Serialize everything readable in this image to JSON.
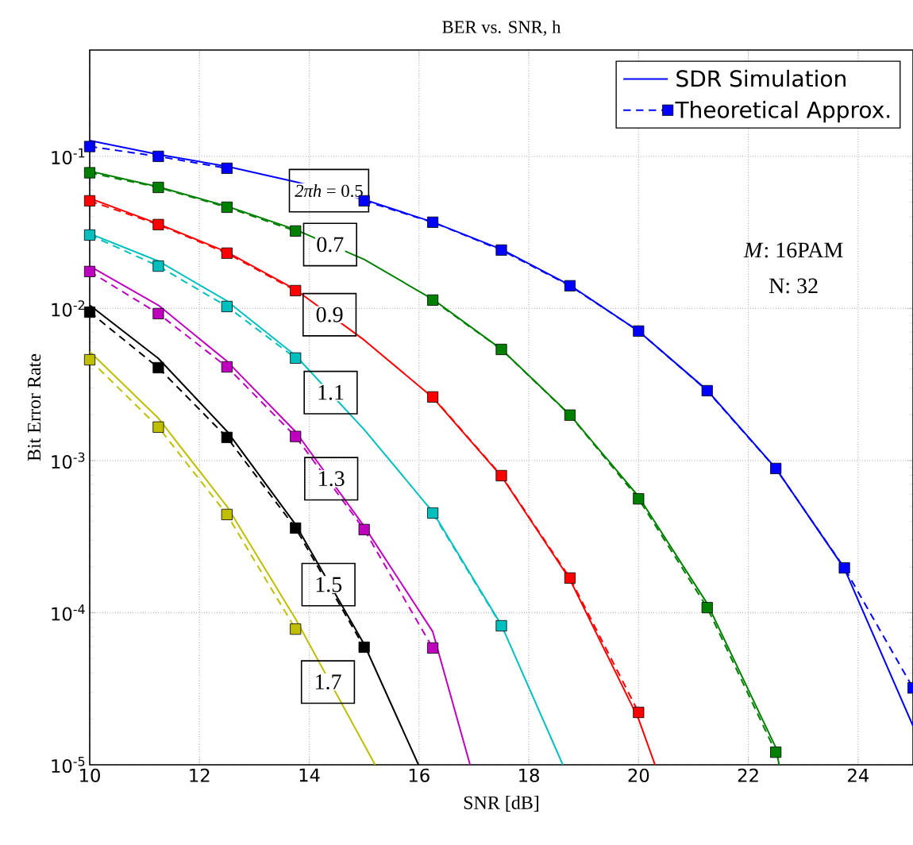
{
  "chart_data": {
    "type": "line",
    "title": "BER vs. SNR, h",
    "xlabel": "SNR [dB]",
    "ylabel": "Bit Error Rate",
    "xlim": [
      10,
      25
    ],
    "xticks": [
      10,
      12,
      14,
      16,
      18,
      20,
      22,
      24
    ],
    "ylim": [
      1e-05,
      0.5
    ],
    "yticks": [
      {
        "value": 1e-05,
        "label": "10$^{-5}$"
      },
      {
        "value": 0.0001,
        "label": "10$^{-4}$"
      },
      {
        "value": 0.001,
        "label": "10$^{-3}$"
      },
      {
        "value": 0.01,
        "label": "10$^{-2}$"
      },
      {
        "value": 0.1,
        "label": "10$^{-1}$"
      }
    ],
    "log": "y",
    "grid": true,
    "legend": "top right",
    "series": [
      {
        "name": "SDR Simulation",
        "color": "#0000ff",
        "line_style": "solid",
        "marker": "none",
        "x": [
          10,
          11.25,
          12.5,
          13.75,
          15,
          16.25,
          17.5,
          18.75,
          20,
          21.25,
          22.5,
          23.75,
          25
        ],
        "values": [
          0.127,
          0.103,
          0.086,
          0.068,
          0.052,
          0.037,
          0.0245,
          0.0142,
          0.0071,
          0.0029,
          0.00089,
          0.000195,
          1.8e-05
        ]
      },
      {
        "name": "Theoretical Approx.",
        "color": "#0000ff",
        "line_style": "dashed",
        "marker": "square",
        "x": [
          10,
          11.25,
          12.5,
          13.75,
          15,
          16.25,
          17.5,
          18.75,
          20,
          21.25,
          22.5,
          23.75,
          25
        ],
        "values": [
          0.116,
          0.1,
          0.0835,
          null,
          0.051,
          0.0369,
          0.0242,
          0.0141,
          0.0071,
          0.00288,
          0.000887,
          0.000197,
          3.2e-05
        ]
      },
      {
        "color": "#008000",
        "line_style": "solid",
        "marker": "none",
        "x": [
          10,
          11.25,
          12.5,
          13.75,
          15,
          16.25,
          17.5,
          18.75,
          20,
          21.25,
          22.5,
          22.56
        ],
        "values": [
          0.08,
          0.063,
          0.047,
          0.033,
          0.021,
          0.0115,
          0.0054,
          0.002,
          0.00058,
          0.000115,
          1.3e-05,
          1e-05
        ]
      },
      {
        "color": "#008000",
        "line_style": "dashed",
        "marker": "square",
        "x": [
          10,
          11.25,
          12.5,
          13.75,
          15,
          16.25,
          17.5,
          18.75,
          20,
          21.25,
          22.5
        ],
        "values": [
          0.078,
          0.0625,
          0.0463,
          0.0323,
          null,
          0.01135,
          0.00538,
          0.00199,
          0.00056,
          0.000108,
          1.21e-05
        ]
      },
      {
        "color": "#ff0000",
        "line_style": "solid",
        "marker": "none",
        "x": [
          10,
          11.25,
          12.5,
          13.75,
          15,
          16.25,
          17.5,
          18.75,
          20,
          20.3
        ],
        "values": [
          0.053,
          0.036,
          0.0235,
          0.0133,
          0.0062,
          0.0026,
          0.00079,
          0.000165,
          2e-05,
          1e-05
        ]
      },
      {
        "color": "#ff0000",
        "line_style": "dashed",
        "marker": "square",
        "x": [
          10,
          11.25,
          12.5,
          13.75,
          15,
          16.25,
          17.5,
          18.75,
          20
        ],
        "values": [
          0.051,
          0.0356,
          0.0231,
          0.0131,
          null,
          0.00262,
          0.000796,
          0.000169,
          2.21e-05
        ]
      },
      {
        "color": "#00bfbf",
        "line_style": "solid",
        "marker": "none",
        "x": [
          10,
          11.25,
          12.5,
          13.75,
          15,
          16.25,
          17.5,
          18.62
        ],
        "values": [
          0.031,
          0.0205,
          0.0112,
          0.0049,
          0.0016,
          0.00046,
          8.3e-05,
          1e-05
        ]
      },
      {
        "color": "#00bfbf",
        "line_style": "dashed",
        "marker": "square",
        "x": [
          10,
          11.25,
          12.5,
          13.75,
          15,
          16.25,
          17.5
        ],
        "values": [
          0.0304,
          0.019,
          0.0103,
          0.00472,
          null,
          0.000452,
          8.2e-05
        ]
      },
      {
        "color": "#bf00bf",
        "line_style": "solid",
        "marker": "none",
        "x": [
          10,
          11.25,
          12.5,
          13.75,
          15,
          16.25,
          16.93
        ],
        "values": [
          0.019,
          0.0105,
          0.0045,
          0.00155,
          0.00037,
          7.5e-05,
          1e-05
        ]
      },
      {
        "color": "#bf00bf",
        "line_style": "dashed",
        "marker": "square",
        "x": [
          10,
          11.25,
          12.5,
          13.75,
          15,
          16.25
        ],
        "values": [
          0.0175,
          0.00925,
          0.00413,
          0.00144,
          0.000352,
          5.86e-05
        ]
      },
      {
        "color": "#000000",
        "line_style": "solid",
        "marker": "none",
        "x": [
          10,
          11.25,
          12.5,
          13.75,
          15,
          15.99
        ],
        "values": [
          0.0105,
          0.0047,
          0.00156,
          0.00038,
          6.2e-05,
          1e-05
        ]
      },
      {
        "color": "#000000",
        "line_style": "dashed",
        "marker": "square",
        "x": [
          10,
          11.25,
          12.5,
          13.75,
          15
        ],
        "values": [
          0.00946,
          0.00408,
          0.00142,
          0.00036,
          5.93e-05
        ]
      },
      {
        "color": "#bfbf00",
        "line_style": "solid",
        "marker": "none",
        "x": [
          10,
          11.25,
          12.5,
          13.75,
          15.2
        ],
        "values": [
          0.0052,
          0.0019,
          0.0005,
          9.1e-05,
          1e-05
        ]
      },
      {
        "color": "#bfbf00",
        "line_style": "dashed",
        "marker": "square",
        "x": [
          10,
          11.25,
          12.5,
          13.75
        ],
        "values": [
          0.0046,
          0.00166,
          0.000442,
          7.8e-05
        ]
      }
    ],
    "annotations": [
      {
        "text": "*2πh* = 0.5",
        "x": 14.36,
        "y": 0.0595
      },
      {
        "text": "0.7",
        "x": 14.38,
        "y": 0.0263
      },
      {
        "text": "0.9",
        "x": 14.37,
        "y": 0.0091
      },
      {
        "text": "1.1",
        "x": 14.39,
        "y": 0.0028
      },
      {
        "text": "1.3",
        "x": 14.4,
        "y": 0.00076
      },
      {
        "text": "1.5",
        "x": 14.35,
        "y": 0.000153
      },
      {
        "text": "1.7",
        "x": 14.34,
        "y": 3.5e-05
      },
      "*M*: 16PAM",
      "N: 32"
    ]
  }
}
